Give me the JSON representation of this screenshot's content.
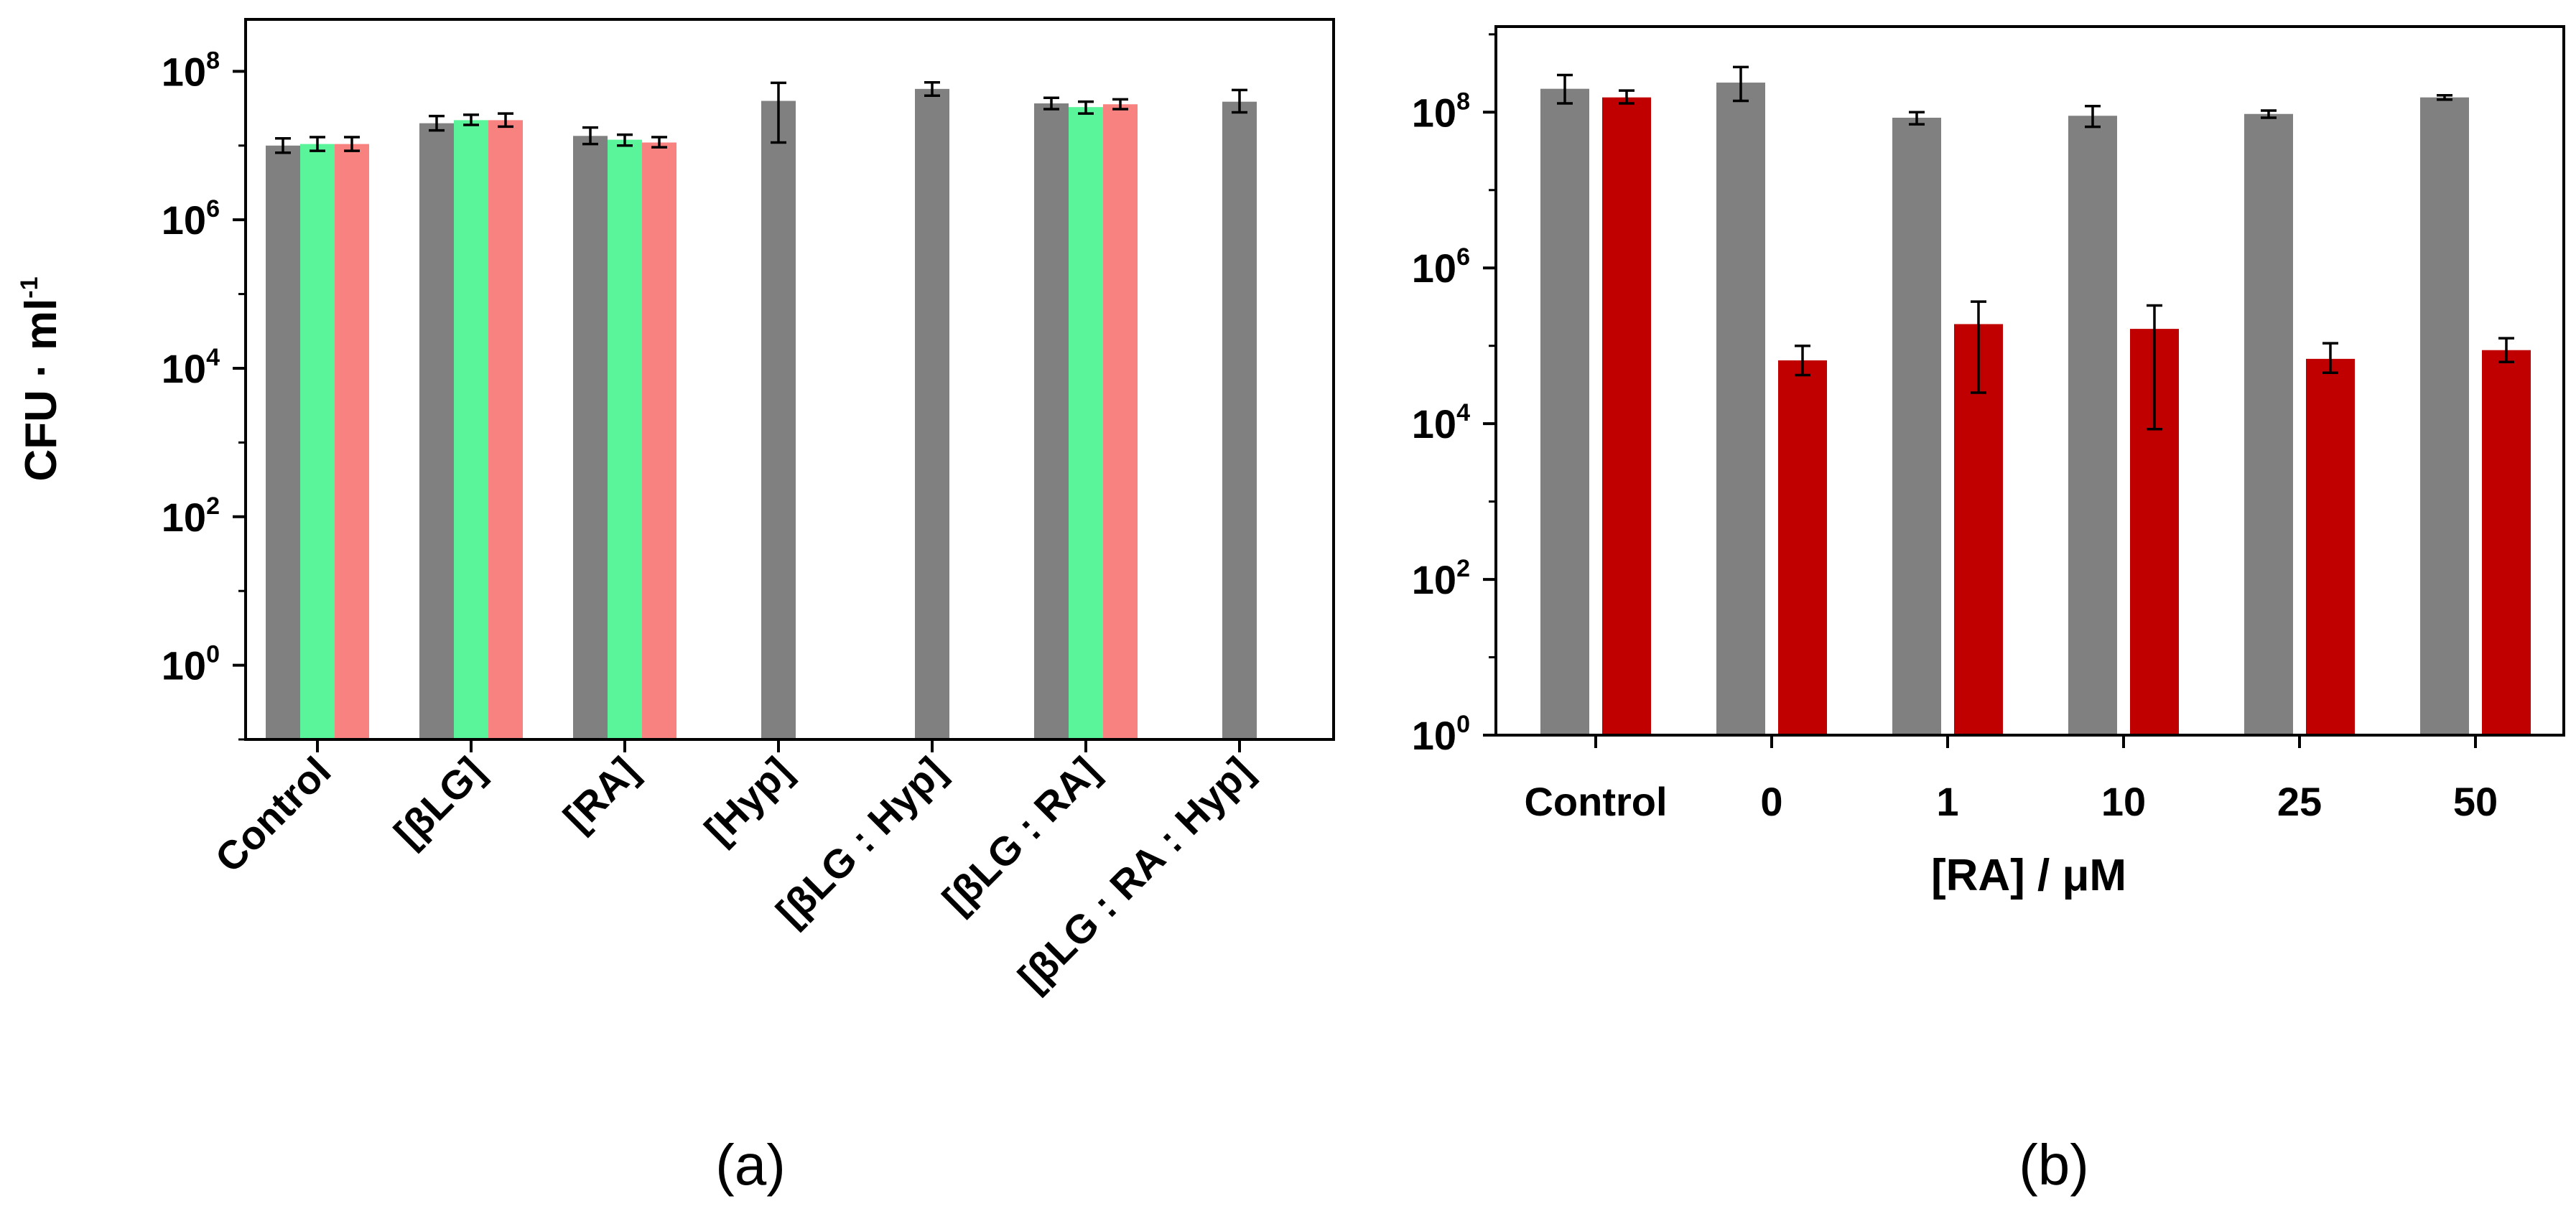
{
  "colors": {
    "gray": "#808080",
    "green": "#5af59a",
    "pink": "#f8827f",
    "red": "#c00000",
    "axis": "#000000"
  },
  "chart_data": [
    {
      "panel": "(a)",
      "type": "bar",
      "scale": "log10",
      "ylabel": "CFU · ml",
      "ylabel_sup": "-1",
      "xlabel": "",
      "ylim_exp": [
        -1,
        8.7
      ],
      "yticks": [
        {
          "base": "10",
          "exp": "0",
          "value_exp": 0
        },
        {
          "base": "10",
          "exp": "2",
          "value_exp": 2
        },
        {
          "base": "10",
          "exp": "4",
          "value_exp": 4
        },
        {
          "base": "10",
          "exp": "6",
          "value_exp": 6
        },
        {
          "base": "10",
          "exp": "8",
          "value_exp": 8
        }
      ],
      "categories": [
        "Control",
        "[βLG]",
        "[RA]",
        "[Hyp]",
        "[βLG : Hyp]",
        "[βLG : RA]",
        "[βLG : RA : Hyp]"
      ],
      "series": [
        {
          "name": "gray",
          "color": "#808080",
          "values": [
            10000000.0,
            20000000.0,
            13500000.0,
            40000000.0,
            58000000.0,
            37000000.0,
            39000000.0
          ],
          "err_low": [
            8000000.0,
            16000000.0,
            10500000.0,
            11000000.0,
            47000000.0,
            31000000.0,
            28000000.0
          ],
          "err_high": [
            12500000.0,
            25000000.0,
            17500000.0,
            70000000.0,
            71000000.0,
            44000000.0,
            56000000.0
          ]
        },
        {
          "name": "green",
          "color": "#5af59a",
          "values": [
            10500000.0,
            22000000.0,
            12000000.0,
            null,
            null,
            33000000.0,
            null
          ],
          "err_low": [
            8500000.0,
            19000000.0,
            10000000.0,
            null,
            null,
            27000000.0,
            null
          ],
          "err_high": [
            13000000.0,
            26000000.0,
            14000000.0,
            null,
            null,
            39000000.0,
            null
          ]
        },
        {
          "name": "pink",
          "color": "#f8827f",
          "values": [
            10500000.0,
            22000000.0,
            11000000.0,
            null,
            null,
            36000000.0,
            null
          ],
          "err_low": [
            8500000.0,
            18000000.0,
            9500000.0,
            null,
            null,
            31000000.0,
            null
          ],
          "err_high": [
            13000000.0,
            27000000.0,
            13000000.0,
            null,
            null,
            42000000.0,
            null
          ]
        }
      ]
    },
    {
      "panel": "(b)",
      "type": "bar",
      "scale": "log10",
      "xlabel": "[RA] / μM",
      "ylabel": "",
      "ylim_exp": [
        0,
        9.1
      ],
      "yticks": [
        {
          "base": "10",
          "exp": "0",
          "value_exp": 0
        },
        {
          "base": "10",
          "exp": "2",
          "value_exp": 2
        },
        {
          "base": "10",
          "exp": "4",
          "value_exp": 4
        },
        {
          "base": "10",
          "exp": "6",
          "value_exp": 6
        },
        {
          "base": "10",
          "exp": "8",
          "value_exp": 8
        }
      ],
      "categories": [
        "Control",
        "0",
        "1",
        "10",
        "25",
        "50"
      ],
      "series": [
        {
          "name": "gray",
          "color": "#808080",
          "values": [
            200000000.0,
            240000000.0,
            85000000.0,
            90000000.0,
            95000000.0,
            155000000.0
          ],
          "err_low": [
            130000000.0,
            140000000.0,
            70000000.0,
            65000000.0,
            85000000.0,
            145000000.0
          ],
          "err_high": [
            300000000.0,
            380000000.0,
            100000000.0,
            120000000.0,
            105000000.0,
            165000000.0
          ]
        },
        {
          "name": "red",
          "color": "#c00000",
          "values": [
            155000000.0,
            65000.0,
            190000.0,
            165000.0,
            68000.0,
            88000.0
          ],
          "err_low": [
            130000000.0,
            42000.0,
            25000.0,
            8500.0,
            45000.0,
            62000.0
          ],
          "err_high": [
            190000000.0,
            100000.0,
            370000.0,
            330000.0,
            108000.0,
            125000.0
          ]
        }
      ]
    }
  ]
}
